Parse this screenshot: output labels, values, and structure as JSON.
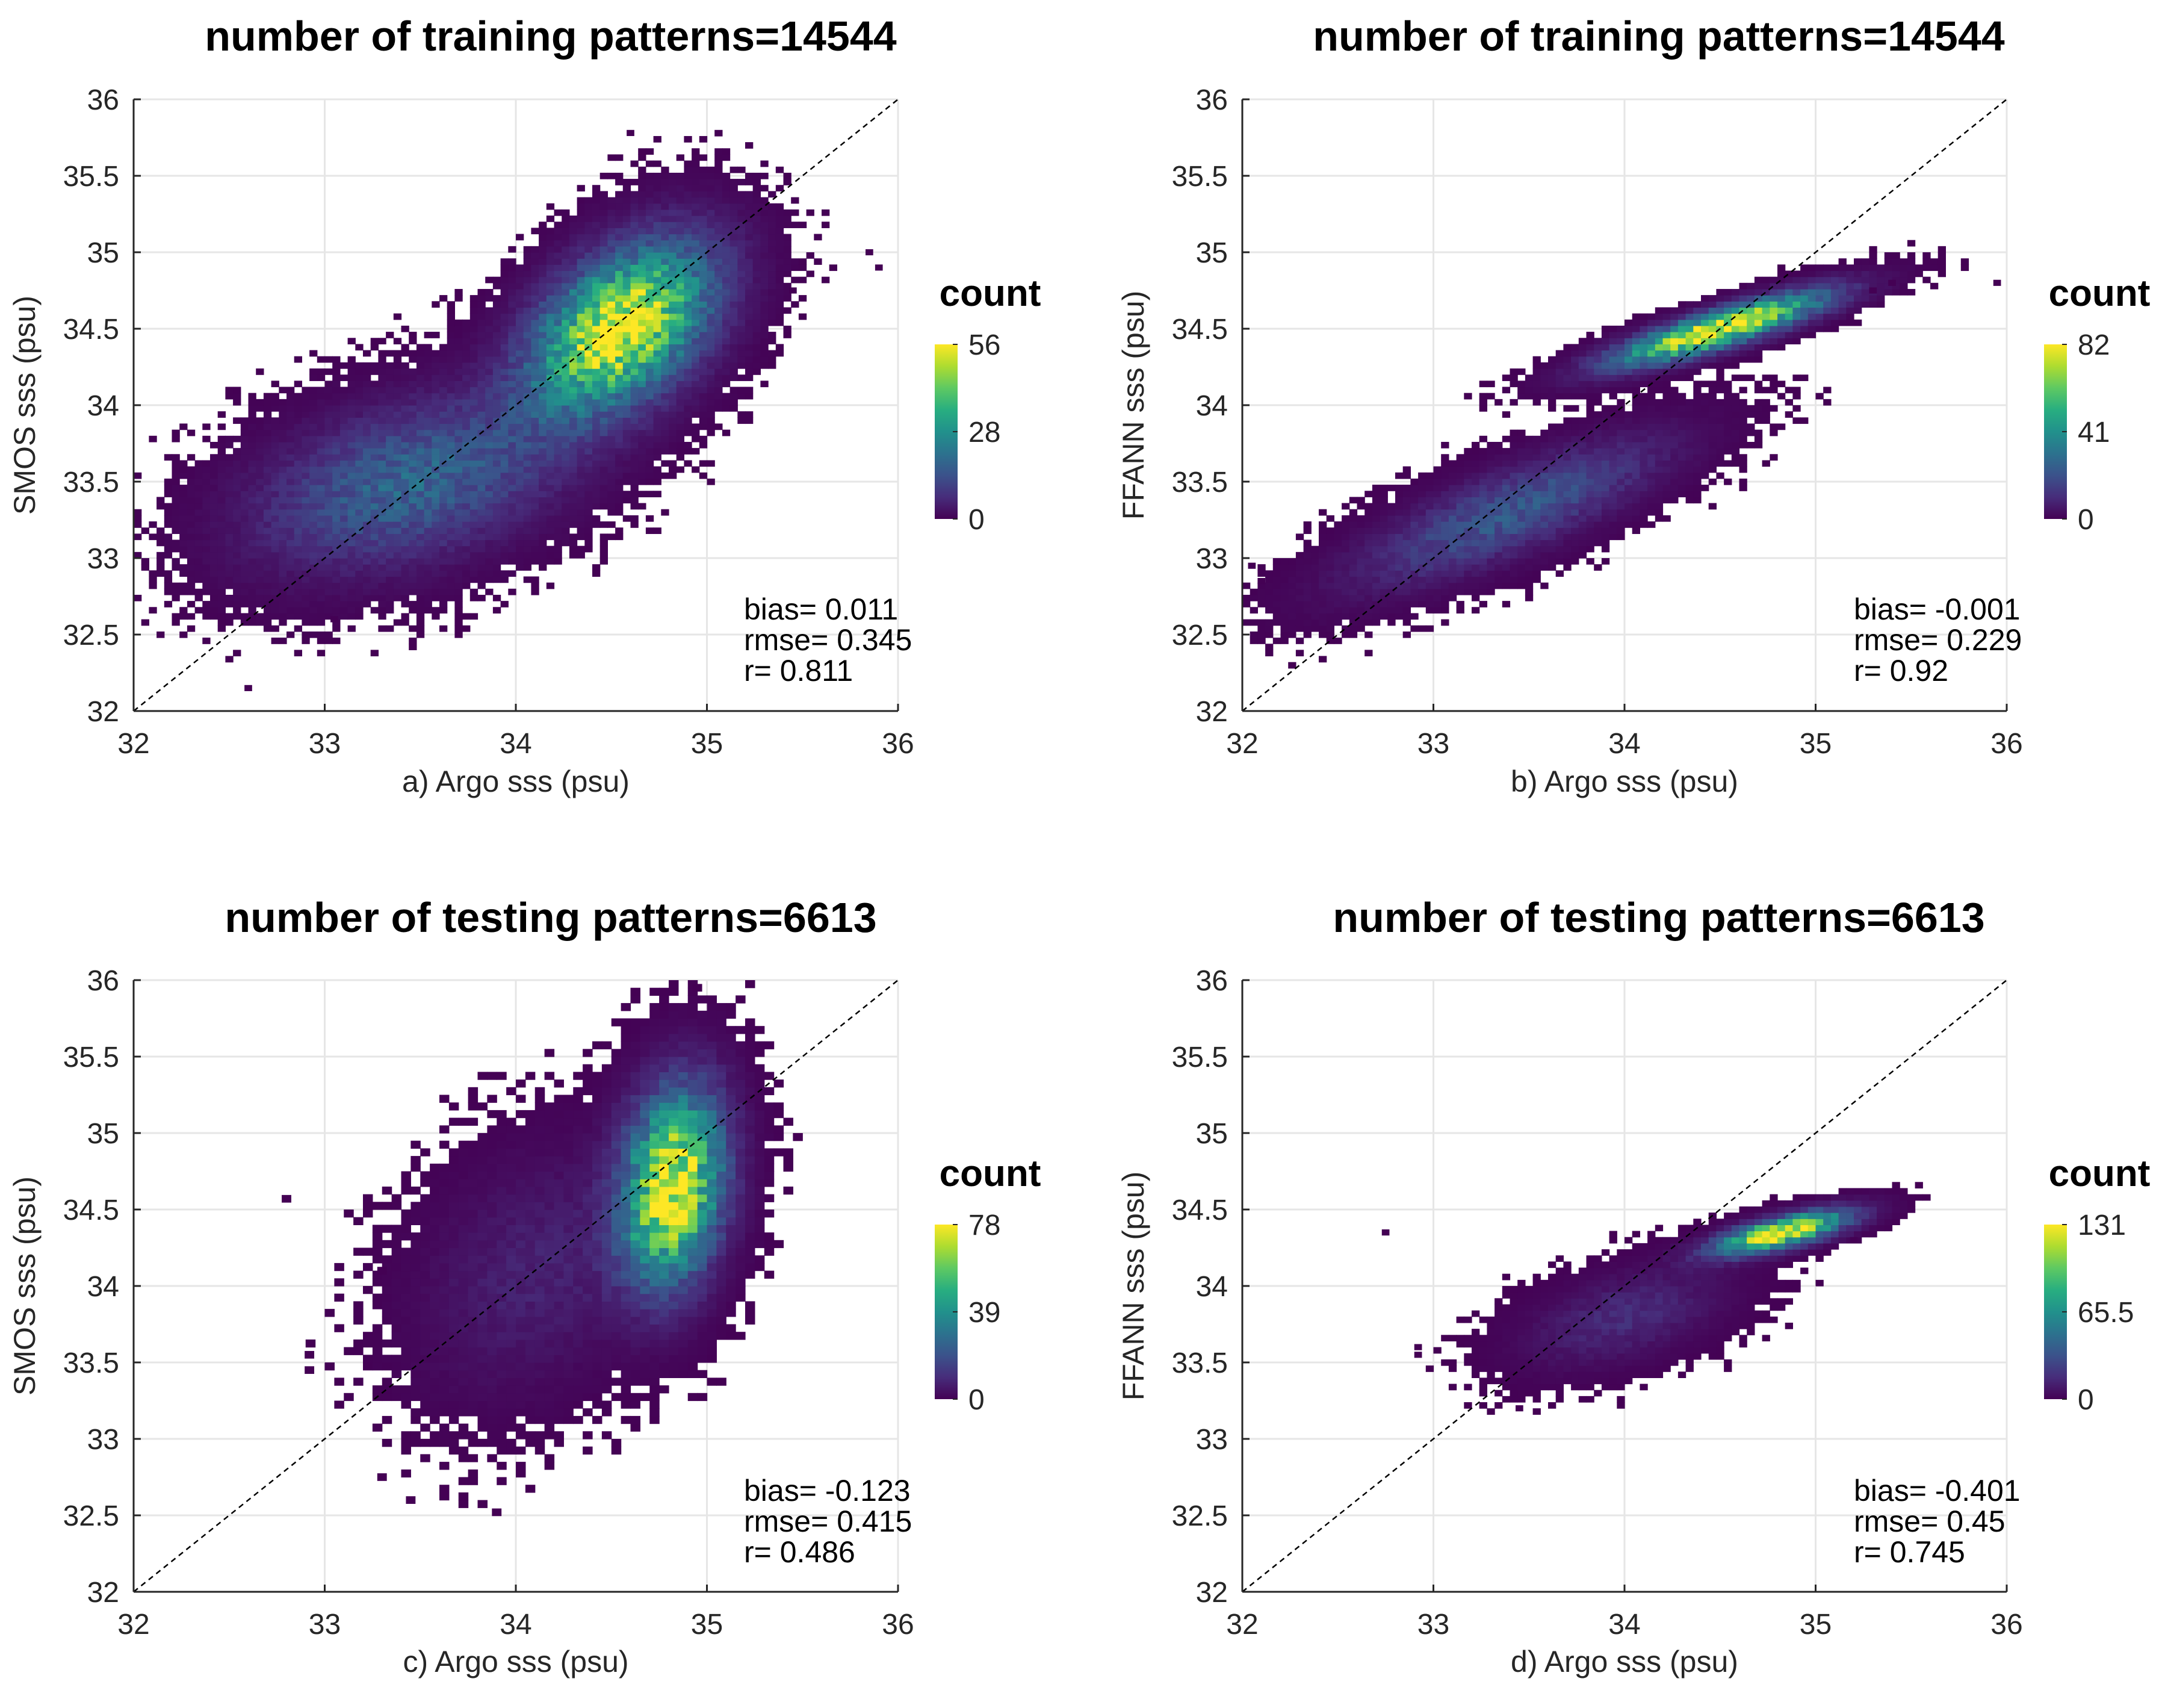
{
  "figure": {
    "type": "multi-panel density scatter",
    "panel_count": 4
  },
  "colors": {
    "colormap": [
      "#440154",
      "#472d7b",
      "#3b528b",
      "#2c728e",
      "#21918c",
      "#28ae80",
      "#5ec962",
      "#addc30",
      "#fde725"
    ],
    "grid": "#e6e6e6",
    "axis": "#262626",
    "identity_line": "#000000"
  },
  "chart_data": [
    {
      "panel": "a",
      "type": "heatmap",
      "title": "number of training patterns=14544",
      "xlabel": "a) Argo sss (psu)",
      "ylabel": "SMOS  sss (psu)",
      "xlim": [
        32,
        36
      ],
      "ylim": [
        32,
        36
      ],
      "x_ticks": [
        32,
        33,
        34,
        35,
        36
      ],
      "y_ticks": [
        32,
        32.5,
        33,
        33.5,
        34,
        34.5,
        35,
        35.5,
        36
      ],
      "x_tick_labels": [
        "32",
        "33",
        "34",
        "35",
        "36"
      ],
      "y_tick_labels": [
        "32",
        "32.5",
        "33",
        "33.5",
        "34",
        "34.5",
        "35",
        "35.5",
        "36"
      ],
      "grid": true,
      "identity_line": true,
      "colorbar": {
        "title": "count",
        "min": 0,
        "max": 56,
        "ticks": [
          0,
          28,
          56
        ],
        "tick_labels": [
          "0",
          "28",
          "56"
        ]
      },
      "stats": {
        "bias": "bias= 0.011",
        "rmse": "rmse= 0.345",
        "r": "r= 0.811"
      },
      "density_model": {
        "cell_size": 0.04,
        "clusters": [
          {
            "cx": 34.55,
            "cy": 34.5,
            "sx": 0.3,
            "sy": 0.35,
            "rho": 0.45,
            "weight": 56
          },
          {
            "cx": 33.45,
            "cy": 33.5,
            "sx": 0.5,
            "sy": 0.35,
            "rho": 0.4,
            "weight": 18
          }
        ],
        "noise": 2.2,
        "seed": 11,
        "outliers": [
          [
            35.9,
            34.9
          ],
          [
            35.45,
            34.75
          ],
          [
            35.85,
            35.0
          ],
          [
            32.6,
            32.15
          ],
          [
            33.05,
            32.6
          ],
          [
            34.6,
            35.78
          ]
        ]
      }
    },
    {
      "panel": "b",
      "type": "heatmap",
      "title": "number of training patterns=14544",
      "xlabel": "b) Argo sss (psu)",
      "ylabel": "FFANN sss (psu)",
      "xlim": [
        32,
        36
      ],
      "ylim": [
        32,
        36
      ],
      "x_ticks": [
        32,
        33,
        34,
        35,
        36
      ],
      "y_ticks": [
        32,
        32.5,
        33,
        33.5,
        34,
        34.5,
        35,
        35.5,
        36
      ],
      "x_tick_labels": [
        "32",
        "33",
        "34",
        "35",
        "36"
      ],
      "y_tick_labels": [
        "32",
        "32.5",
        "33",
        "33.5",
        "34",
        "34.5",
        "35",
        "35.5",
        "36"
      ],
      "grid": true,
      "identity_line": true,
      "colorbar": {
        "title": "count",
        "min": 0,
        "max": 82,
        "ticks": [
          0,
          41,
          82
        ],
        "tick_labels": [
          "0",
          "41",
          "82"
        ]
      },
      "stats": {
        "bias": "bias= -0.001",
        "rmse": "rmse= 0.229",
        "r": "r= 0.92"
      },
      "density_model": {
        "cell_size": 0.04,
        "clusters": [
          {
            "cx": 34.5,
            "cy": 34.5,
            "sx": 0.35,
            "sy": 0.15,
            "rho": 0.85,
            "weight": 82
          },
          {
            "cx": 33.4,
            "cy": 33.3,
            "sx": 0.5,
            "sy": 0.3,
            "rho": 0.8,
            "weight": 22
          }
        ],
        "noise": 2.0,
        "seed": 23,
        "outliers": [
          [
            35.95,
            34.8
          ],
          [
            35.4,
            34.8
          ],
          [
            32.05,
            32.95
          ],
          [
            32.1,
            32.85
          ],
          [
            35.3,
            34.75
          ]
        ]
      }
    },
    {
      "panel": "c",
      "type": "heatmap",
      "title": "number of testing patterns=6613",
      "xlabel": "c) Argo sss (psu)",
      "ylabel": "SMOS sss (psu)",
      "xlim": [
        32,
        36
      ],
      "ylim": [
        32,
        36
      ],
      "x_ticks": [
        32,
        33,
        34,
        35,
        36
      ],
      "y_ticks": [
        32,
        32.5,
        33,
        33.5,
        34,
        34.5,
        35,
        35.5,
        36
      ],
      "x_tick_labels": [
        "32",
        "33",
        "34",
        "35",
        "36"
      ],
      "y_tick_labels": [
        "32",
        "32.5",
        "33",
        "33.5",
        "34",
        "34.5",
        "35",
        "35.5",
        "36"
      ],
      "grid": true,
      "identity_line": true,
      "colorbar": {
        "title": "count",
        "min": 0,
        "max": 78,
        "ticks": [
          0,
          39,
          78
        ],
        "tick_labels": [
          "0",
          "39",
          "78"
        ]
      },
      "stats": {
        "bias": "bias= -0.123",
        "rmse": "rmse= 0.415",
        "r": "r= 0.486"
      },
      "density_model": {
        "cell_size": 0.05,
        "clusters": [
          {
            "cx": 34.82,
            "cy": 34.65,
            "sx": 0.17,
            "sy": 0.4,
            "rho": 0.2,
            "weight": 78
          },
          {
            "cx": 34.1,
            "cy": 34.1,
            "sx": 0.38,
            "sy": 0.5,
            "rho": 0.3,
            "weight": 7
          }
        ],
        "noise": 2.2,
        "seed": 37,
        "outliers": [
          [
            32.8,
            34.57
          ],
          [
            32.92,
            33.55
          ],
          [
            32.92,
            33.45
          ],
          [
            33.3,
            34.1
          ],
          [
            33.45,
            32.6
          ],
          [
            33.9,
            32.52
          ],
          [
            34.95,
            35.95
          ],
          [
            33.3,
            32.75
          ]
        ]
      }
    },
    {
      "panel": "d",
      "type": "heatmap",
      "title": "number of testing patterns=6613",
      "xlabel": "d) Argo sss (psu)",
      "ylabel": "FFANN sss (psu)",
      "xlim": [
        32,
        36
      ],
      "ylim": [
        32,
        36
      ],
      "x_ticks": [
        32,
        33,
        34,
        35,
        36
      ],
      "y_ticks": [
        32,
        32.5,
        33,
        33.5,
        34,
        34.5,
        35,
        35.5,
        36
      ],
      "x_tick_labels": [
        "32",
        "33",
        "34",
        "35",
        "36"
      ],
      "y_tick_labels": [
        "32",
        "32.5",
        "33",
        "33.5",
        "34",
        "34.5",
        "35",
        "35.5",
        "36"
      ],
      "grid": true,
      "identity_line": true,
      "colorbar": {
        "title": "count",
        "min": 0,
        "max": 131,
        "ticks": [
          0,
          65.5,
          131
        ],
        "tick_labels": [
          "0",
          "65.5",
          "131"
        ]
      },
      "stats": {
        "bias": "bias= -0.401",
        "rmse": "rmse= 0.45",
        "r": "r= 0.745"
      },
      "density_model": {
        "cell_size": 0.04,
        "clusters": [
          {
            "cx": 34.82,
            "cy": 34.35,
            "sx": 0.22,
            "sy": 0.09,
            "rho": 0.7,
            "weight": 131
          },
          {
            "cx": 34.0,
            "cy": 33.8,
            "sx": 0.32,
            "sy": 0.2,
            "rho": 0.5,
            "weight": 16
          }
        ],
        "noise": 2.0,
        "seed": 53,
        "outliers": [
          [
            32.75,
            34.35
          ],
          [
            32.92,
            33.6
          ],
          [
            32.92,
            33.55
          ],
          [
            33.45,
            33.2
          ],
          [
            35.2,
            34.3
          ]
        ]
      }
    }
  ]
}
